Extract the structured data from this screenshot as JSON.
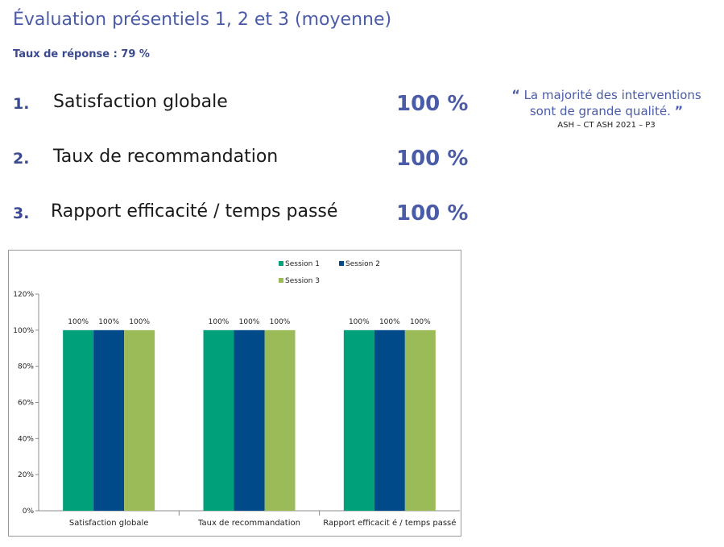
{
  "page": {
    "title": "Évaluation présentiels 1, 2 et 3 (moyenne)",
    "response_rate": "Taux de réponse : 79 %"
  },
  "items": [
    {
      "num": "1.",
      "label": "Satisfaction globale",
      "value": "100 %"
    },
    {
      "num": "2.",
      "label": "Taux de recommandation",
      "value": "100 %"
    },
    {
      "num": "3.",
      "label": "Rapport efficacité / temps passé",
      "value": "100 %"
    }
  ],
  "quote": {
    "open": "“",
    "text_line1": "La majorité des interventions",
    "text_line2": "sont de grande qualité.",
    "close": "”",
    "source": "ASH – CT ASH 2021 – P3"
  },
  "chart_data": {
    "type": "bar",
    "categories": [
      "Satisfaction globale",
      "Taux de recommandation",
      "Rapport efficacit é / temps passé"
    ],
    "series": [
      {
        "name": "Session 1",
        "values": [
          100,
          100,
          100
        ],
        "color": "#00a07a"
      },
      {
        "name": "Session 2",
        "values": [
          100,
          100,
          100
        ],
        "color": "#004a8a"
      },
      {
        "name": "Session 3",
        "values": [
          100,
          100,
          100
        ],
        "color": "#9bbb59"
      }
    ],
    "data_labels": [
      "100%",
      "100%",
      "100%"
    ],
    "yticks": [
      "0%",
      "20%",
      "40%",
      "60%",
      "80%",
      "100%",
      "120%"
    ],
    "ylim": [
      0,
      120
    ],
    "grid": false,
    "legend": "top"
  }
}
